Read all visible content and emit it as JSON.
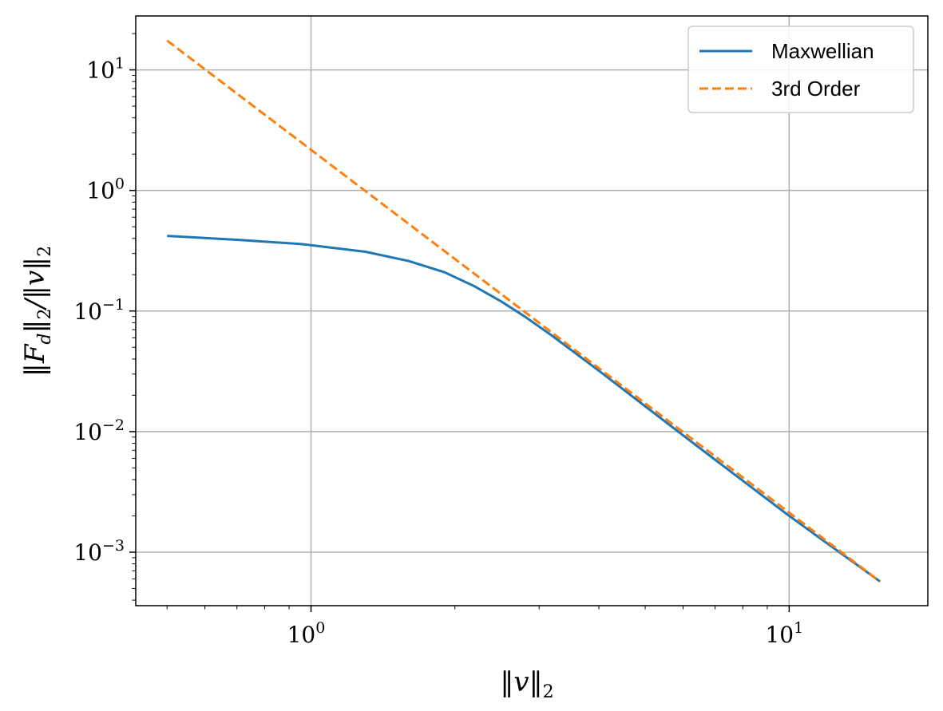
{
  "chart_data": {
    "type": "line",
    "xscale": "log",
    "yscale": "log",
    "xlim": [
      0.43,
      19.5
    ],
    "ylim": [
      0.00036,
      28
    ],
    "grid": true,
    "legend_position": "top-right",
    "xlabel": "‖v‖₂",
    "ylabel": "‖F_d‖₂/‖v‖₂",
    "x_ticks": [
      {
        "value": 1,
        "base": "10",
        "exp": "0"
      },
      {
        "value": 10,
        "base": "10",
        "exp": "1"
      }
    ],
    "y_ticks": [
      {
        "value": 0.001,
        "base": "10",
        "exp": "−3"
      },
      {
        "value": 0.01,
        "base": "10",
        "exp": "−2"
      },
      {
        "value": 0.1,
        "base": "10",
        "exp": "−1"
      },
      {
        "value": 1,
        "base": "10",
        "exp": "0"
      },
      {
        "value": 10,
        "base": "10",
        "exp": "1"
      }
    ],
    "series": [
      {
        "name": "Maxwellian",
        "color": "#1f77b4",
        "dash": "solid",
        "x": [
          0.5,
          0.7,
          0.95,
          1.3,
          1.6,
          1.9,
          2.2,
          2.5,
          2.8,
          3.2,
          4.0,
          6.0,
          10.0,
          15.5
        ],
        "y": [
          0.42,
          0.39,
          0.36,
          0.31,
          0.26,
          0.21,
          0.16,
          0.12,
          0.09,
          0.062,
          0.032,
          0.0093,
          0.002,
          0.00057
        ]
      },
      {
        "name": "3rd Order",
        "color": "#ff7f0e",
        "dash": "dashed",
        "x": [
          0.5,
          15.5
        ],
        "y": [
          17.5,
          0.00057
        ]
      }
    ]
  }
}
